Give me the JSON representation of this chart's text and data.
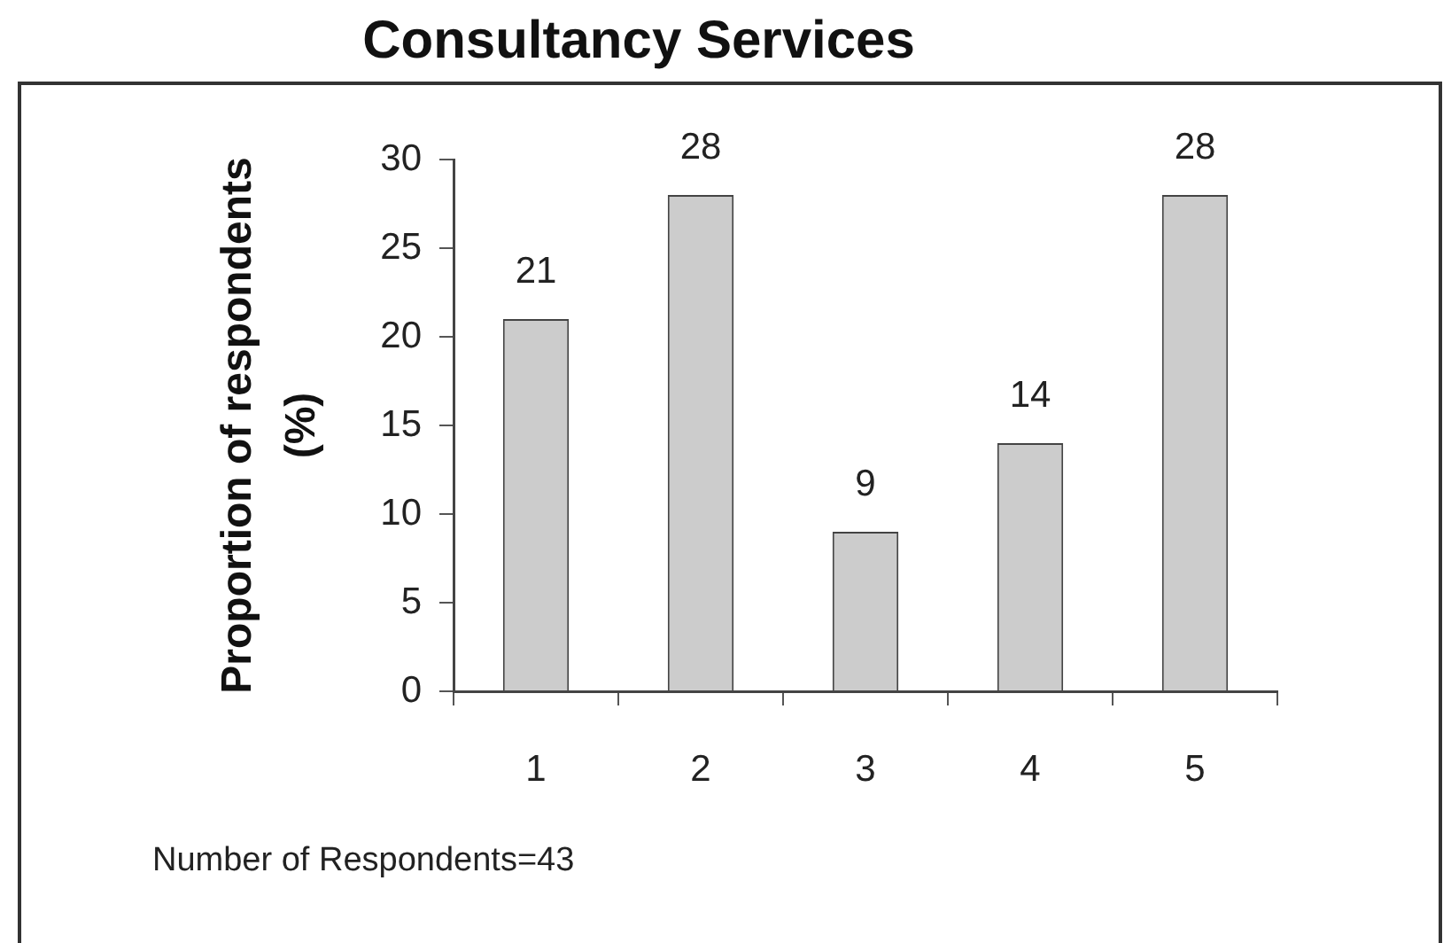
{
  "chart_data": {
    "type": "bar",
    "title": "Consultancy Services",
    "ylabel": "Proportion of respondents (%)",
    "categories": [
      "1",
      "2",
      "3",
      "4",
      "5"
    ],
    "values": [
      21,
      28,
      9,
      14,
      28
    ],
    "color": "#cccccc",
    "ylim": [
      0,
      30
    ],
    "yticks": [
      0,
      5,
      10,
      15,
      20,
      25,
      30
    ],
    "data_labels": true,
    "annotations": [
      "Number of Respondents=43"
    ]
  }
}
